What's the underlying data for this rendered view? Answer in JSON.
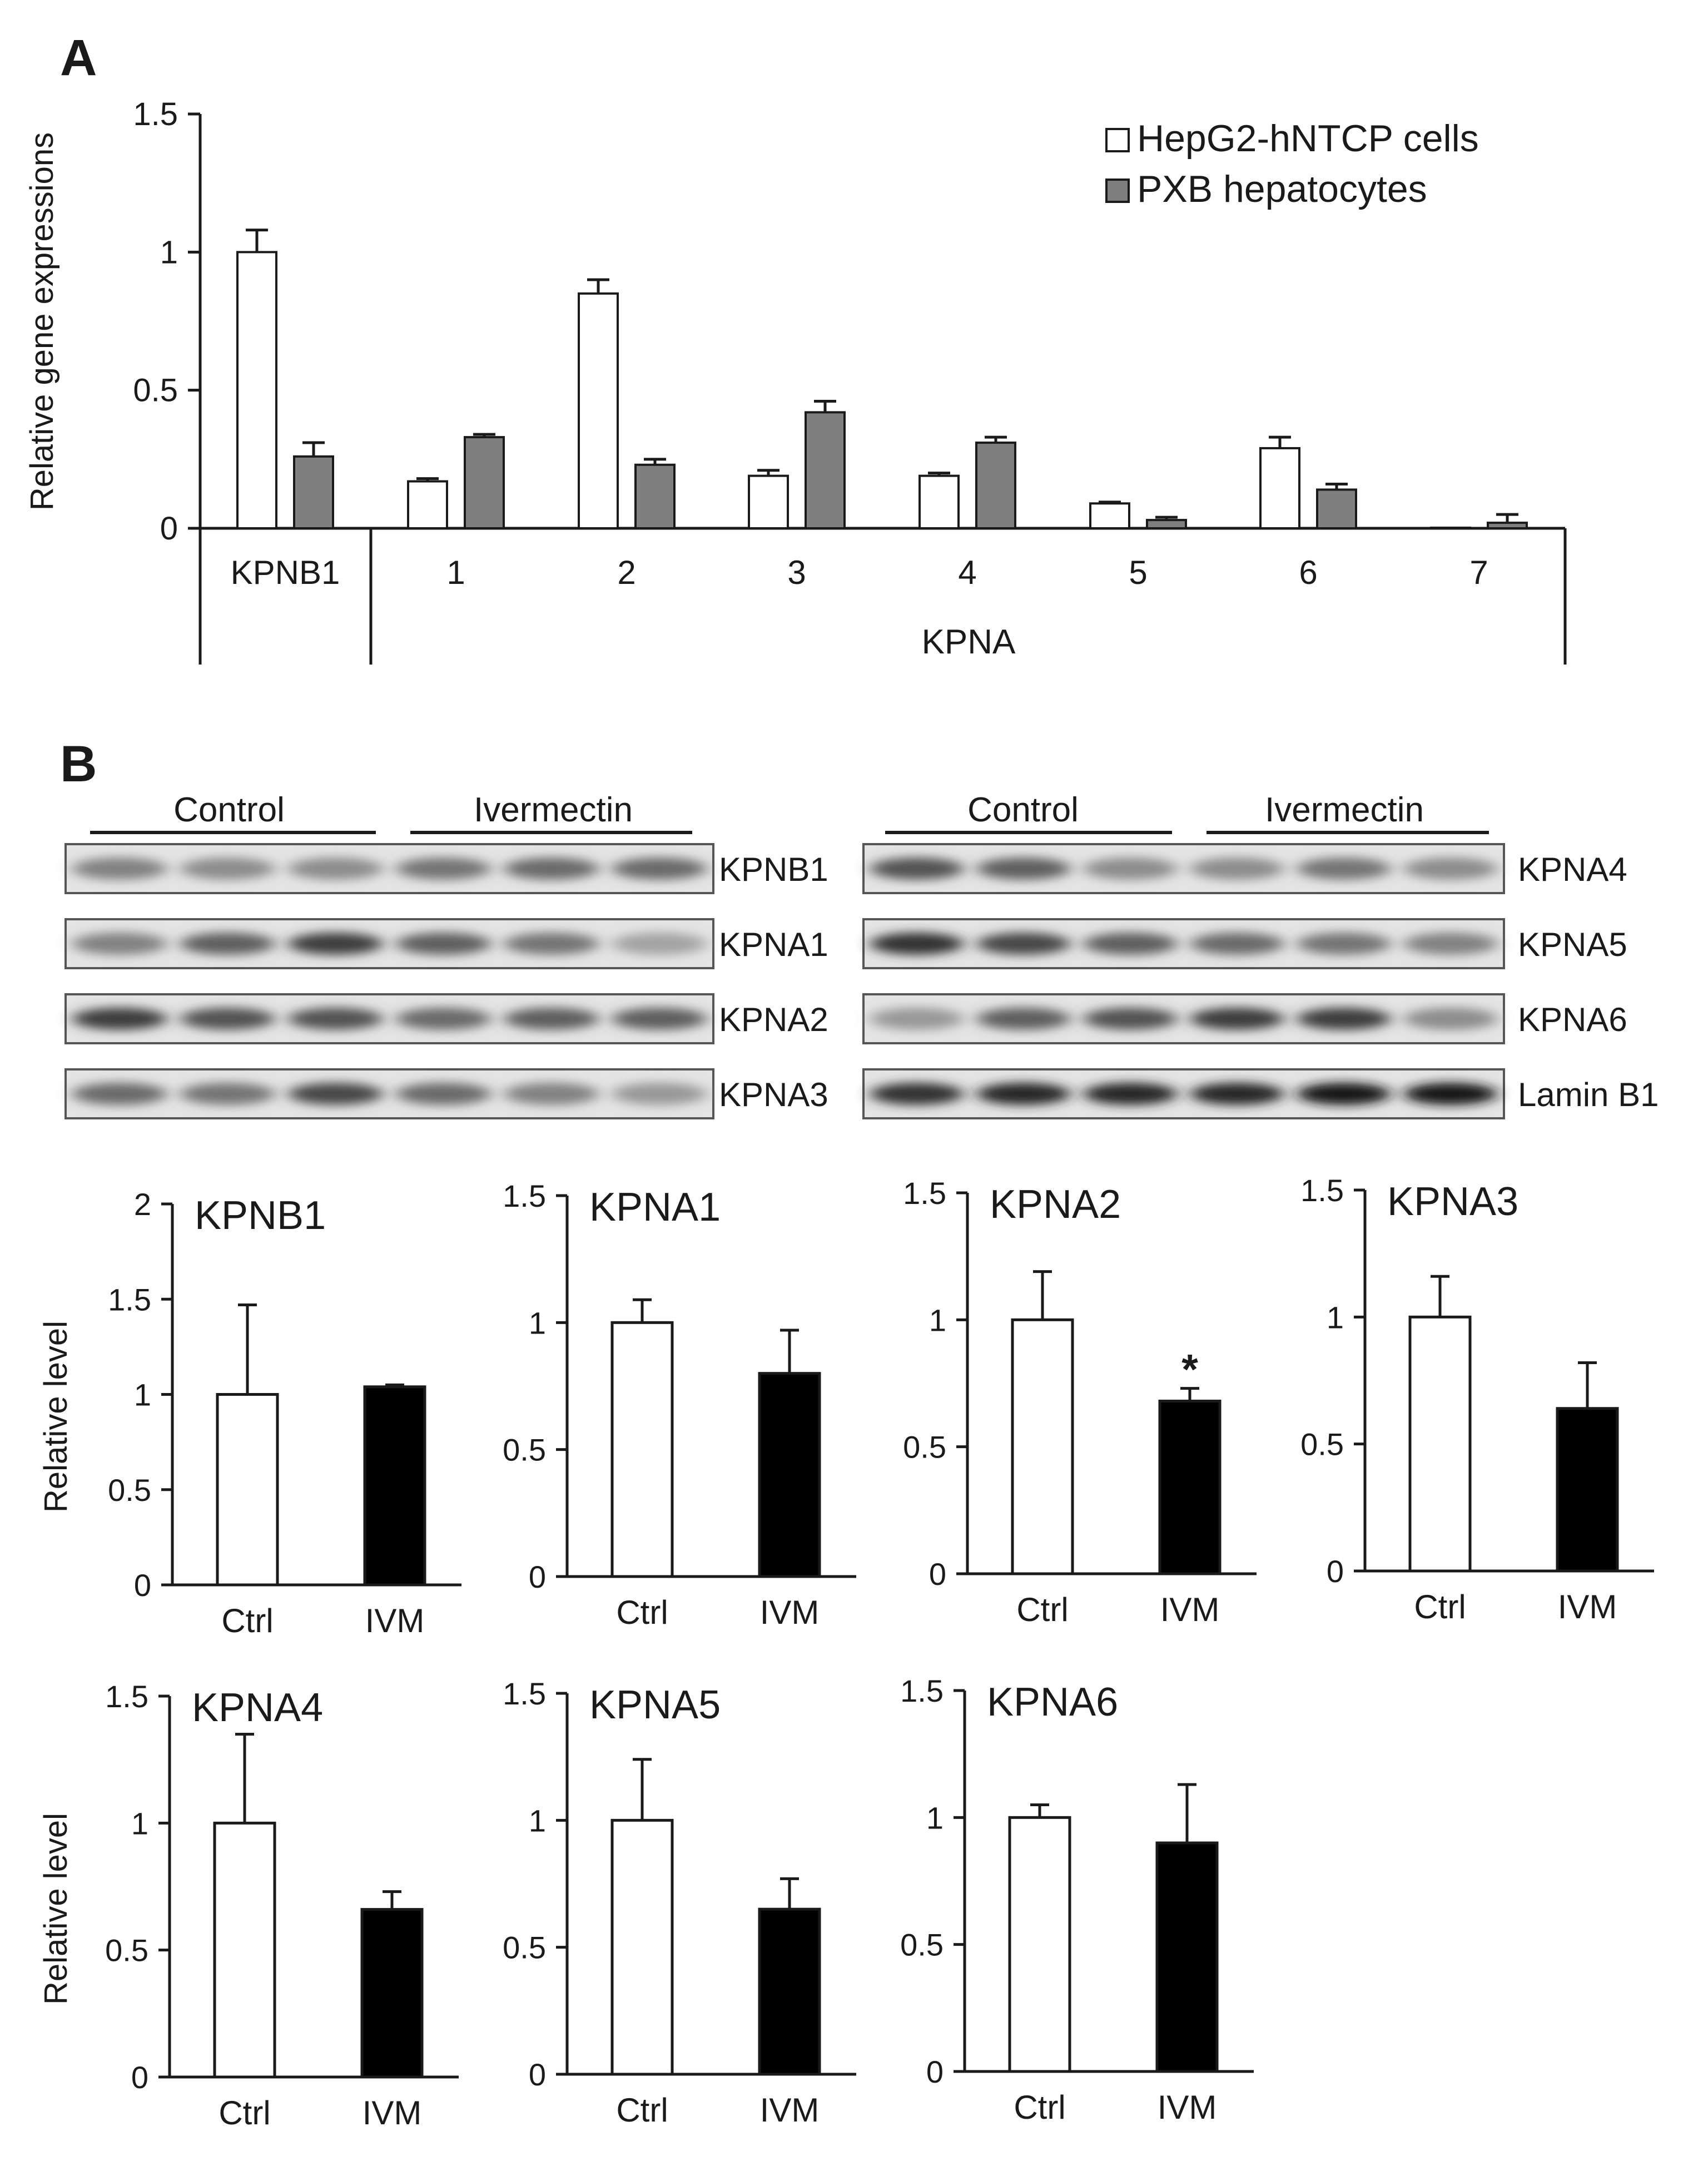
{
  "panel_labels": {
    "a": "A",
    "b": "B"
  },
  "colors": {
    "hepg2": "#ffffff",
    "pxb": "#7f7f7f",
    "ctrl": "#ffffff",
    "ivm": "#000000",
    "axis": "#1a1a1a"
  },
  "chart_data": [
    {
      "type": "bar",
      "panel": "A",
      "title": "",
      "ylabel": "Relative gene expressions",
      "xlabel": "KPNA",
      "group_label": "KPNB1",
      "categories": [
        "KPNB1",
        "1",
        "2",
        "3",
        "4",
        "5",
        "6",
        "7"
      ],
      "ylim": [
        0,
        1.5
      ],
      "yticks": [
        "0",
        "0.5",
        "1",
        "1.5"
      ],
      "legend_position": "top-right",
      "series": [
        {
          "name": "HepG2-hNTCP cells",
          "color": "#ffffff",
          "values": [
            1.0,
            0.17,
            0.85,
            0.19,
            0.19,
            0.09,
            0.29,
            0.0
          ],
          "errors": [
            0.08,
            0.01,
            0.05,
            0.02,
            0.01,
            0.005,
            0.04,
            0.0
          ]
        },
        {
          "name": "PXB hepatocytes",
          "color": "#7f7f7f",
          "values": [
            0.26,
            0.33,
            0.23,
            0.42,
            0.31,
            0.03,
            0.14,
            0.02
          ],
          "errors": [
            0.05,
            0.01,
            0.02,
            0.04,
            0.02,
            0.01,
            0.02,
            0.03
          ]
        }
      ]
    },
    {
      "type": "bar",
      "title": "KPNB1",
      "ylabel": "Relative level",
      "categories": [
        "Ctrl",
        "IVM"
      ],
      "values": [
        1.0,
        1.04
      ],
      "errors": [
        0.47,
        0.01
      ],
      "ylim": [
        0,
        2
      ],
      "yticks": [
        "0",
        "0.5",
        "1",
        "1.5",
        "2"
      ],
      "significance": [
        "",
        ""
      ]
    },
    {
      "type": "bar",
      "title": "KPNA1",
      "ylabel": "",
      "categories": [
        "Ctrl",
        "IVM"
      ],
      "values": [
        1.0,
        0.8
      ],
      "errors": [
        0.09,
        0.17
      ],
      "ylim": [
        0,
        1.5
      ],
      "yticks": [
        "0",
        "0.5",
        "1",
        "1.5"
      ],
      "significance": [
        "",
        ""
      ]
    },
    {
      "type": "bar",
      "title": "KPNA2",
      "ylabel": "",
      "categories": [
        "Ctrl",
        "IVM"
      ],
      "values": [
        1.0,
        0.68
      ],
      "errors": [
        0.19,
        0.05
      ],
      "ylim": [
        0,
        1.5
      ],
      "yticks": [
        "0",
        "0.5",
        "1",
        "1.5"
      ],
      "significance": [
        "",
        "*"
      ]
    },
    {
      "type": "bar",
      "title": "KPNA3",
      "ylabel": "",
      "categories": [
        "Ctrl",
        "IVM"
      ],
      "values": [
        1.0,
        0.64
      ],
      "errors": [
        0.16,
        0.18
      ],
      "ylim": [
        0,
        1.5
      ],
      "yticks": [
        "0",
        "0.5",
        "1",
        "1.5"
      ],
      "significance": [
        "",
        ""
      ]
    },
    {
      "type": "bar",
      "title": "KPNA4",
      "ylabel": "Relative level",
      "categories": [
        "Ctrl",
        "IVM"
      ],
      "values": [
        1.0,
        0.66
      ],
      "errors": [
        0.35,
        0.07
      ],
      "ylim": [
        0,
        1.5
      ],
      "yticks": [
        "0",
        "0.5",
        "1",
        "1.5"
      ],
      "significance": [
        "",
        ""
      ]
    },
    {
      "type": "bar",
      "title": "KPNA5",
      "ylabel": "",
      "categories": [
        "Ctrl",
        "IVM"
      ],
      "values": [
        1.0,
        0.65
      ],
      "errors": [
        0.24,
        0.12
      ],
      "ylim": [
        0,
        1.5
      ],
      "yticks": [
        "0",
        "0.5",
        "1",
        "1.5"
      ],
      "significance": [
        "",
        ""
      ]
    },
    {
      "type": "bar",
      "title": "KPNA6",
      "ylabel": "",
      "categories": [
        "Ctrl",
        "IVM"
      ],
      "values": [
        1.0,
        0.9
      ],
      "errors": [
        0.05,
        0.23
      ],
      "ylim": [
        0,
        1.5
      ],
      "yticks": [
        "0",
        "0.5",
        "1",
        "1.5"
      ],
      "significance": [
        "",
        ""
      ]
    }
  ],
  "blots": {
    "groups": [
      "Control",
      "Ivermectin"
    ],
    "left_bands": [
      {
        "label": "KPNB1",
        "intensity": [
          0.55,
          0.5,
          0.5,
          0.6,
          0.65,
          0.65
        ]
      },
      {
        "label": "KPNA1",
        "intensity": [
          0.55,
          0.7,
          0.85,
          0.7,
          0.6,
          0.4
        ]
      },
      {
        "label": "KPNA2",
        "intensity": [
          0.85,
          0.75,
          0.75,
          0.65,
          0.7,
          0.7
        ]
      },
      {
        "label": "KPNA3",
        "intensity": [
          0.65,
          0.6,
          0.8,
          0.65,
          0.55,
          0.45
        ]
      }
    ],
    "right_bands": [
      {
        "label": "KPNA4",
        "intensity": [
          0.75,
          0.7,
          0.5,
          0.5,
          0.6,
          0.5
        ]
      },
      {
        "label": "KPNA5",
        "intensity": [
          0.9,
          0.8,
          0.7,
          0.65,
          0.6,
          0.55
        ]
      },
      {
        "label": "KPNA6",
        "intensity": [
          0.45,
          0.7,
          0.75,
          0.85,
          0.85,
          0.5
        ]
      },
      {
        "label": "Lamin B1",
        "intensity": [
          0.9,
          0.95,
          0.95,
          0.95,
          1.0,
          1.0
        ]
      }
    ]
  }
}
